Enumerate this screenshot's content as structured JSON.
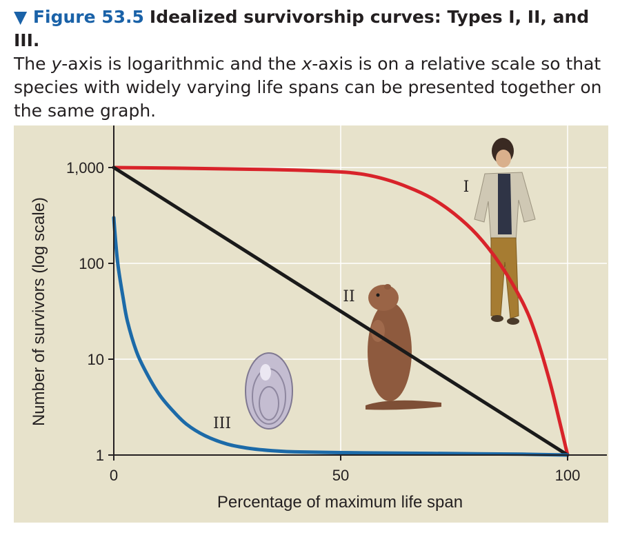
{
  "caption": {
    "figure_number": "▼ Figure 53.5",
    "title": "Idealized survivorship curves: Types I, II, and III.",
    "text_parts": [
      "The ",
      "y",
      "-axis is logarithmic and the ",
      "x",
      "-axis is on a relative scale so that species with widely varying life spans can be presented together on the same graph."
    ]
  },
  "colors": {
    "panel_background": "#e7e2cb",
    "type_I": "#d8232a",
    "type_II": "#1a1a1a",
    "type_III": "#1c6aa8",
    "gridline": "#ffffff"
  },
  "chart_data": {
    "type": "line",
    "xlabel": "Percentage of maximum life span",
    "ylabel": "Number of survivors (log scale)",
    "xlim": [
      0,
      100
    ],
    "ylim": [
      1,
      1000
    ],
    "y_scale": "log",
    "grid": true,
    "x_ticks": [
      0,
      50,
      100
    ],
    "x_tick_labels": [
      "0",
      "50",
      "100"
    ],
    "y_ticks": [
      1,
      10,
      100,
      1000
    ],
    "y_tick_labels": [
      "1",
      "10",
      "100",
      "1,000"
    ],
    "series": [
      {
        "name": "I",
        "color": "#d8232a",
        "x": [
          0,
          10,
          20,
          30,
          40,
          50,
          55,
          60,
          65,
          70,
          75,
          80,
          85,
          90,
          93,
          96,
          98,
          100
        ],
        "y": [
          1000,
          990,
          975,
          960,
          940,
          900,
          850,
          750,
          620,
          480,
          330,
          200,
          100,
          40,
          18,
          6,
          2.5,
          1
        ]
      },
      {
        "name": "II",
        "color": "#1a1a1a",
        "x": [
          0,
          100
        ],
        "y": [
          1000,
          1
        ]
      },
      {
        "name": "III",
        "color": "#1c6aa8",
        "x": [
          0,
          0.5,
          1,
          2,
          3,
          5,
          7,
          10,
          13,
          16,
          20,
          25,
          30,
          35,
          40,
          50,
          60,
          70,
          80,
          90,
          100
        ],
        "y": [
          300,
          150,
          90,
          45,
          25,
          12,
          7.5,
          4.3,
          2.9,
          2.1,
          1.6,
          1.3,
          1.17,
          1.11,
          1.08,
          1.06,
          1.05,
          1.04,
          1.03,
          1.02,
          1
        ]
      }
    ],
    "annotations": [
      "I",
      "II",
      "III"
    ]
  }
}
